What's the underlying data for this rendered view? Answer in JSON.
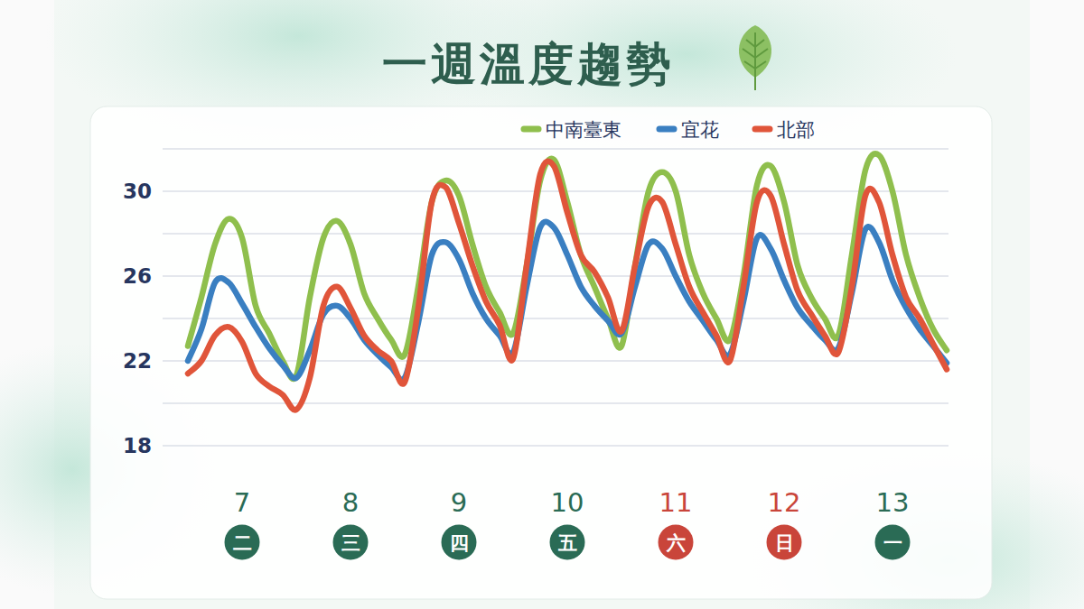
{
  "chart_data": {
    "type": "line",
    "title": "一週溫度趨勢",
    "categories": [
      null,
      null,
      null,
      null,
      "7",
      null,
      null,
      null,
      null,
      null,
      null,
      null,
      "8",
      null,
      null,
      null,
      null,
      null,
      null,
      null,
      "9",
      null,
      null,
      null,
      null,
      null,
      null,
      null,
      "10",
      null,
      null,
      null,
      null,
      null,
      null,
      null,
      "11",
      null,
      null,
      null,
      null,
      null,
      null,
      null,
      "12",
      null,
      null,
      null,
      null,
      null,
      null,
      null,
      "13",
      null,
      null,
      null,
      null
    ],
    "weekdays": [
      "二",
      "三",
      "四",
      "五",
      "六",
      "日",
      "一"
    ],
    "weekday_colors": [
      "#2a6b55",
      "#2a6b55",
      "#2a6b55",
      "#2a6b55",
      "#c9453a",
      "#c9453a",
      "#2a6b55"
    ],
    "series": [
      {
        "name": "中南臺東",
        "color": "#8fbf4d",
        "values": [
          22.7,
          25.0,
          27.5,
          28.7,
          27.8,
          24.6,
          23.3,
          22.0,
          21.3,
          25.0,
          27.8,
          28.6,
          27.5,
          25.2,
          24.0,
          23.0,
          22.3,
          25.5,
          29.5,
          30.5,
          29.8,
          27.5,
          25.5,
          24.3,
          23.3,
          26.5,
          30.5,
          31.5,
          29.5,
          27.0,
          25.5,
          24.0,
          22.7,
          26.5,
          30.0,
          30.9,
          30.0,
          27.0,
          25.2,
          24.0,
          23.0,
          26.0,
          30.3,
          31.2,
          29.5,
          26.5,
          25.0,
          24.0,
          23.2,
          27.0,
          31.0,
          31.7,
          30.0,
          27.0,
          25.0,
          23.5,
          22.5
        ]
      },
      {
        "name": "宜花",
        "color": "#3a7fc1",
        "values": [
          22.0,
          23.5,
          25.7,
          25.7,
          24.7,
          23.6,
          22.6,
          21.8,
          21.2,
          22.5,
          24.2,
          24.6,
          24.0,
          23.0,
          22.3,
          21.7,
          21.2,
          23.8,
          27.0,
          27.6,
          26.8,
          25.2,
          24.0,
          23.2,
          22.4,
          25.5,
          28.3,
          28.3,
          27.0,
          25.5,
          24.6,
          23.9,
          23.3,
          25.5,
          27.5,
          27.3,
          26.0,
          24.8,
          23.9,
          23.0,
          22.3,
          24.8,
          27.8,
          27.3,
          25.8,
          24.5,
          23.7,
          23.0,
          22.6,
          25.2,
          28.2,
          27.6,
          25.8,
          24.5,
          23.5,
          22.7,
          21.9
        ]
      },
      {
        "name": "北部",
        "color": "#e0553a",
        "values": [
          21.4,
          22.0,
          23.2,
          23.6,
          22.9,
          21.4,
          20.8,
          20.4,
          19.7,
          21.2,
          24.6,
          25.5,
          24.5,
          23.2,
          22.5,
          22.0,
          21.0,
          24.5,
          29.5,
          30.2,
          28.5,
          26.5,
          24.8,
          23.7,
          22.1,
          26.5,
          30.8,
          31.2,
          29.0,
          27.0,
          26.2,
          25.0,
          23.4,
          26.5,
          29.3,
          29.5,
          27.5,
          25.5,
          24.3,
          23.2,
          22.0,
          25.5,
          29.5,
          29.8,
          27.5,
          25.3,
          24.2,
          23.2,
          22.4,
          25.5,
          29.8,
          29.5,
          27.0,
          25.0,
          24.0,
          22.8,
          21.6
        ]
      }
    ],
    "ylim": [
      18,
      32
    ],
    "yticks": [
      18,
      {
        "value": 20,
        "label": null
      },
      22,
      {
        "value": 24,
        "label": null
      },
      26,
      {
        "value": 28,
        "label": null
      },
      30,
      {
        "value": 32,
        "label": null
      }
    ],
    "grid": true,
    "legend": "top"
  }
}
